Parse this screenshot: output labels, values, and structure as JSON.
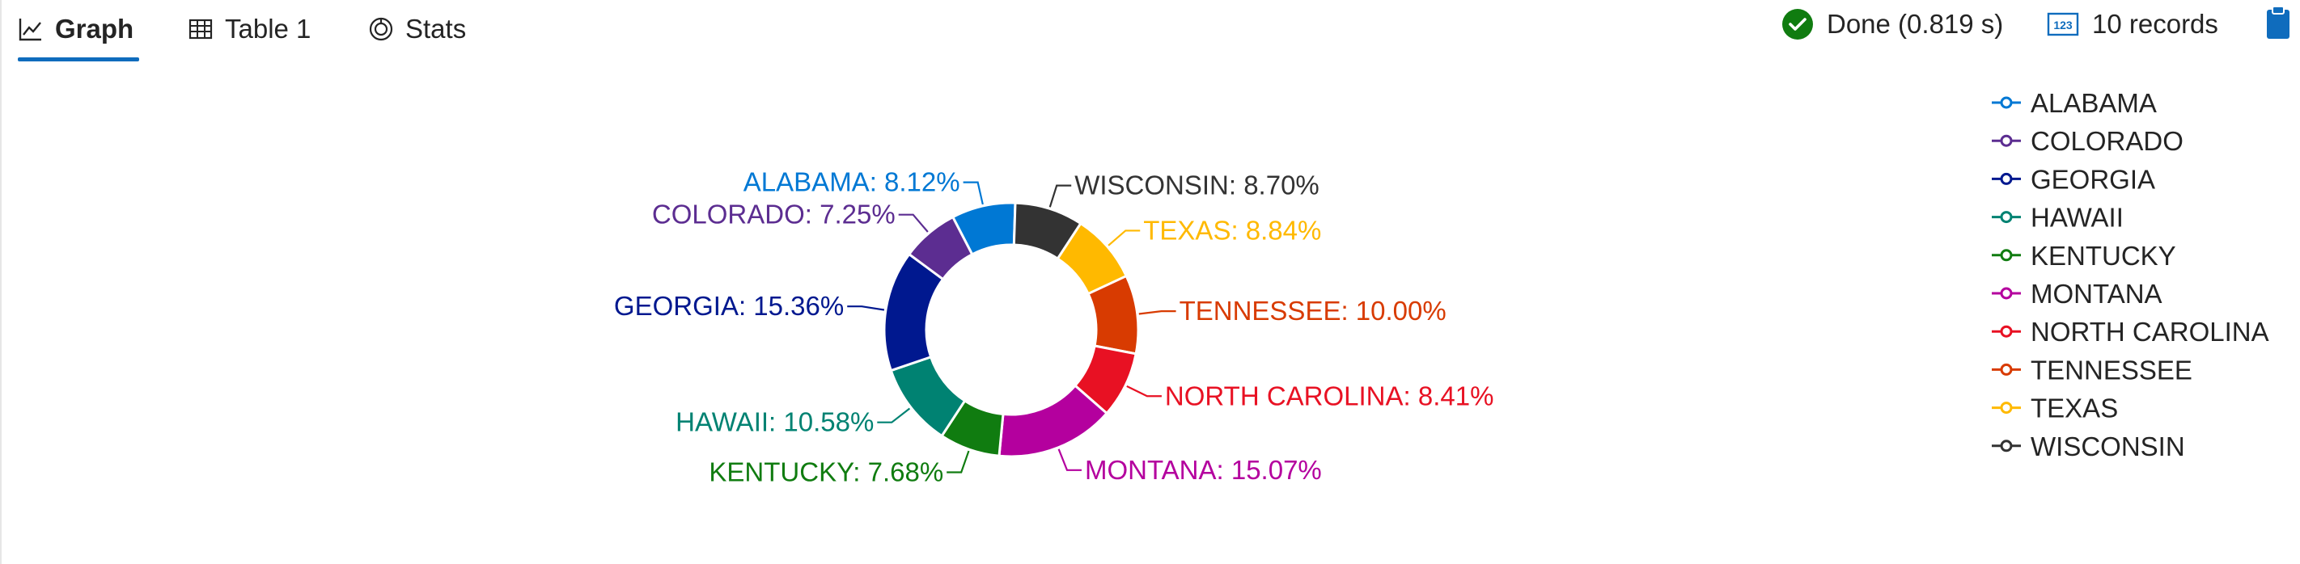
{
  "tabs": [
    {
      "label": "Graph",
      "active": true,
      "icon": "line-chart-icon"
    },
    {
      "label": "Table 1",
      "active": false,
      "icon": "table-icon"
    },
    {
      "label": "Stats",
      "active": false,
      "icon": "stats-icon"
    }
  ],
  "status": {
    "done_label": "Done (0.819 s)",
    "records_label": "10 records",
    "done_icon": "check-circle-icon",
    "records_icon": "number-box-icon",
    "clipboard_icon": "clipboard-icon",
    "colors": {
      "success": "#107c10",
      "accent": "#0f6cbd"
    }
  },
  "chart_data": {
    "type": "pie",
    "donut": true,
    "title": "",
    "legend_position": "top-right",
    "slices": [
      {
        "name": "ALABAMA",
        "value": 8.12,
        "label": "ALABAMA: 8.12%",
        "color": "#0078d4"
      },
      {
        "name": "WISCONSIN",
        "value": 8.7,
        "label": "WISCONSIN: 8.70%",
        "color": "#333333"
      },
      {
        "name": "TEXAS",
        "value": 8.84,
        "label": "TEXAS: 8.84%",
        "color": "#ffb900"
      },
      {
        "name": "TENNESSEE",
        "value": 10.0,
        "label": "TENNESSEE: 10.00%",
        "color": "#d83b01"
      },
      {
        "name": "NORTH CAROLINA",
        "value": 8.41,
        "label": "NORTH CAROLINA: 8.41%",
        "color": "#e81123"
      },
      {
        "name": "MONTANA",
        "value": 15.07,
        "label": "MONTANA: 15.07%",
        "color": "#b4009e"
      },
      {
        "name": "KENTUCKY",
        "value": 7.68,
        "label": "KENTUCKY: 7.68%",
        "color": "#107c10"
      },
      {
        "name": "HAWAII",
        "value": 10.58,
        "label": "HAWAII: 10.58%",
        "color": "#008272"
      },
      {
        "name": "GEORGIA",
        "value": 15.36,
        "label": "GEORGIA: 15.36%",
        "color": "#00188f"
      },
      {
        "name": "COLORADO",
        "value": 7.25,
        "label": "COLORADO: 7.25%",
        "color": "#5c2d91"
      }
    ],
    "legend": [
      {
        "name": "ALABAMA",
        "color": "#0078d4"
      },
      {
        "name": "COLORADO",
        "color": "#5c2d91"
      },
      {
        "name": "GEORGIA",
        "color": "#00188f"
      },
      {
        "name": "HAWAII",
        "color": "#008272"
      },
      {
        "name": "KENTUCKY",
        "color": "#107c10"
      },
      {
        "name": "MONTANA",
        "color": "#b4009e"
      },
      {
        "name": "NORTH CAROLINA",
        "color": "#e81123"
      },
      {
        "name": "TENNESSEE",
        "color": "#d83b01"
      },
      {
        "name": "TEXAS",
        "color": "#ffb900"
      },
      {
        "name": "WISCONSIN",
        "color": "#333333"
      }
    ]
  }
}
